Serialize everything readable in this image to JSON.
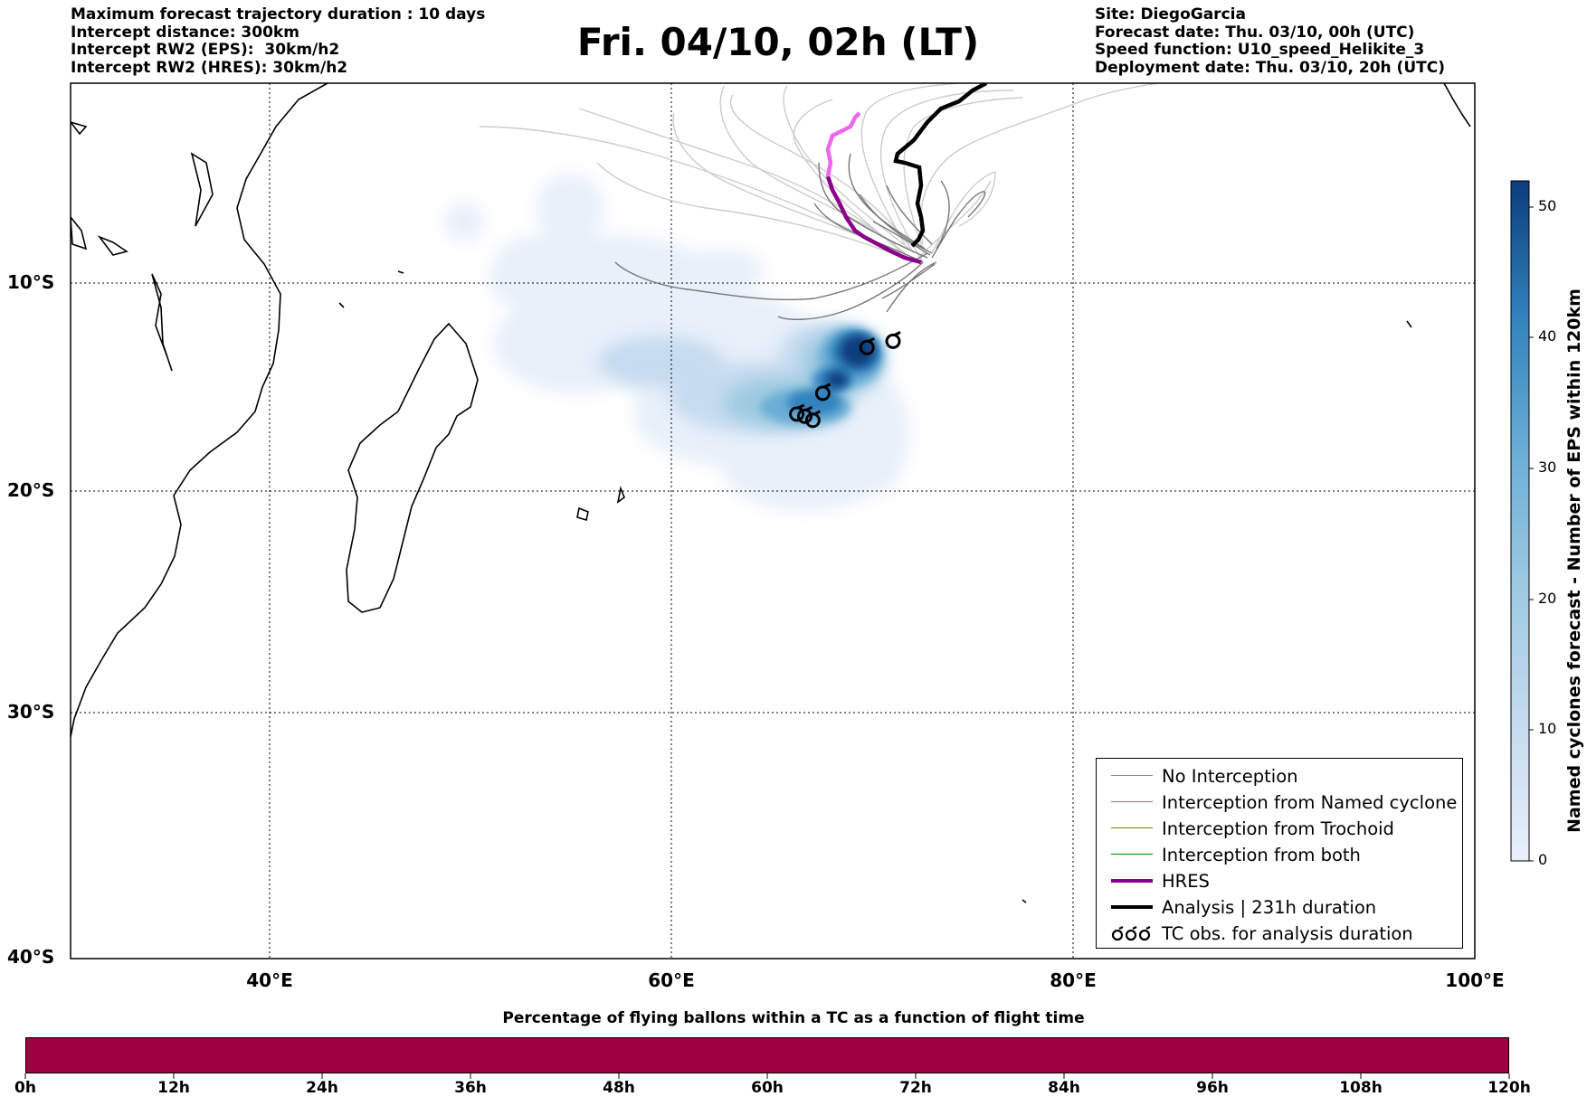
{
  "header": {
    "left_lines": [
      "Maximum forecast trajectory duration : 10 days",
      "Intercept distance: 300km",
      "Intercept RW2 (EPS):  30km/h2",
      "Intercept RW2 (HRES): 30km/h2"
    ],
    "title": "Fri. 04/10, 02h (LT)",
    "right_lines": [
      "Site: DiegoGarcia",
      "Forecast date: Thu. 03/10, 00h (UTC)",
      "Speed function: U10_speed_Helikite_3",
      "Deployment date: Thu. 03/10, 20h (UTC)"
    ]
  },
  "map": {
    "lon_range": [
      30,
      100
    ],
    "lat_range": [
      -40,
      0
    ],
    "lat_labels": [
      "10°S",
      "20°S",
      "30°S",
      "40°S"
    ],
    "lon_labels": [
      "40°E",
      "60°E",
      "80°E",
      "100°E"
    ],
    "hres_color": "#8b008b",
    "hres_recent_color": "#ee66ee",
    "ensemble_color": "#888888",
    "analysis_color": "#000000",
    "tc_obs_positions": [
      {
        "lon": 69.7,
        "lat": -13.1
      },
      {
        "lon": 71.0,
        "lat": -12.8
      },
      {
        "lon": 67.5,
        "lat": -15.3
      },
      {
        "lon": 66.2,
        "lat": -16.3
      },
      {
        "lon": 66.6,
        "lat": -16.4
      },
      {
        "lon": 67.0,
        "lat": -16.6
      }
    ]
  },
  "colorbar": {
    "label": "Named cyclones forecast - Number of EPS within 120km",
    "ticks": [
      "0",
      "10",
      "20",
      "30",
      "40",
      "50"
    ],
    "min": 0,
    "max": 52,
    "colors": [
      "#e8f0fa",
      "#c6dbef",
      "#9ecae1",
      "#6baed6",
      "#3182bd",
      "#0b3c7d"
    ]
  },
  "legend": {
    "items": [
      {
        "label": "No Interception",
        "color": "#888888",
        "width": 1.5
      },
      {
        "label": "Interception from Named cyclone",
        "color": "#ff5a00",
        "width": 1.5
      },
      {
        "label": "Interception from Trochoid",
        "color": "#808000",
        "width": 1.5
      },
      {
        "label": "Interception from both",
        "color": "#008000",
        "width": 1.5
      },
      {
        "label": "HRES",
        "color": "#8b008b",
        "width": 4
      },
      {
        "label": "Analysis | 231h duration",
        "color": "#000000",
        "width": 4
      },
      {
        "label": "TC obs. for analysis duration",
        "color": "#000000",
        "width": 0
      }
    ]
  },
  "flight_bar": {
    "title": "Percentage of flying ballons within a TC as a function of flight time",
    "color": "#9e0142",
    "labels": [
      "0h",
      "12h",
      "24h",
      "36h",
      "48h",
      "60h",
      "72h",
      "84h",
      "96h",
      "108h",
      "120h"
    ]
  }
}
